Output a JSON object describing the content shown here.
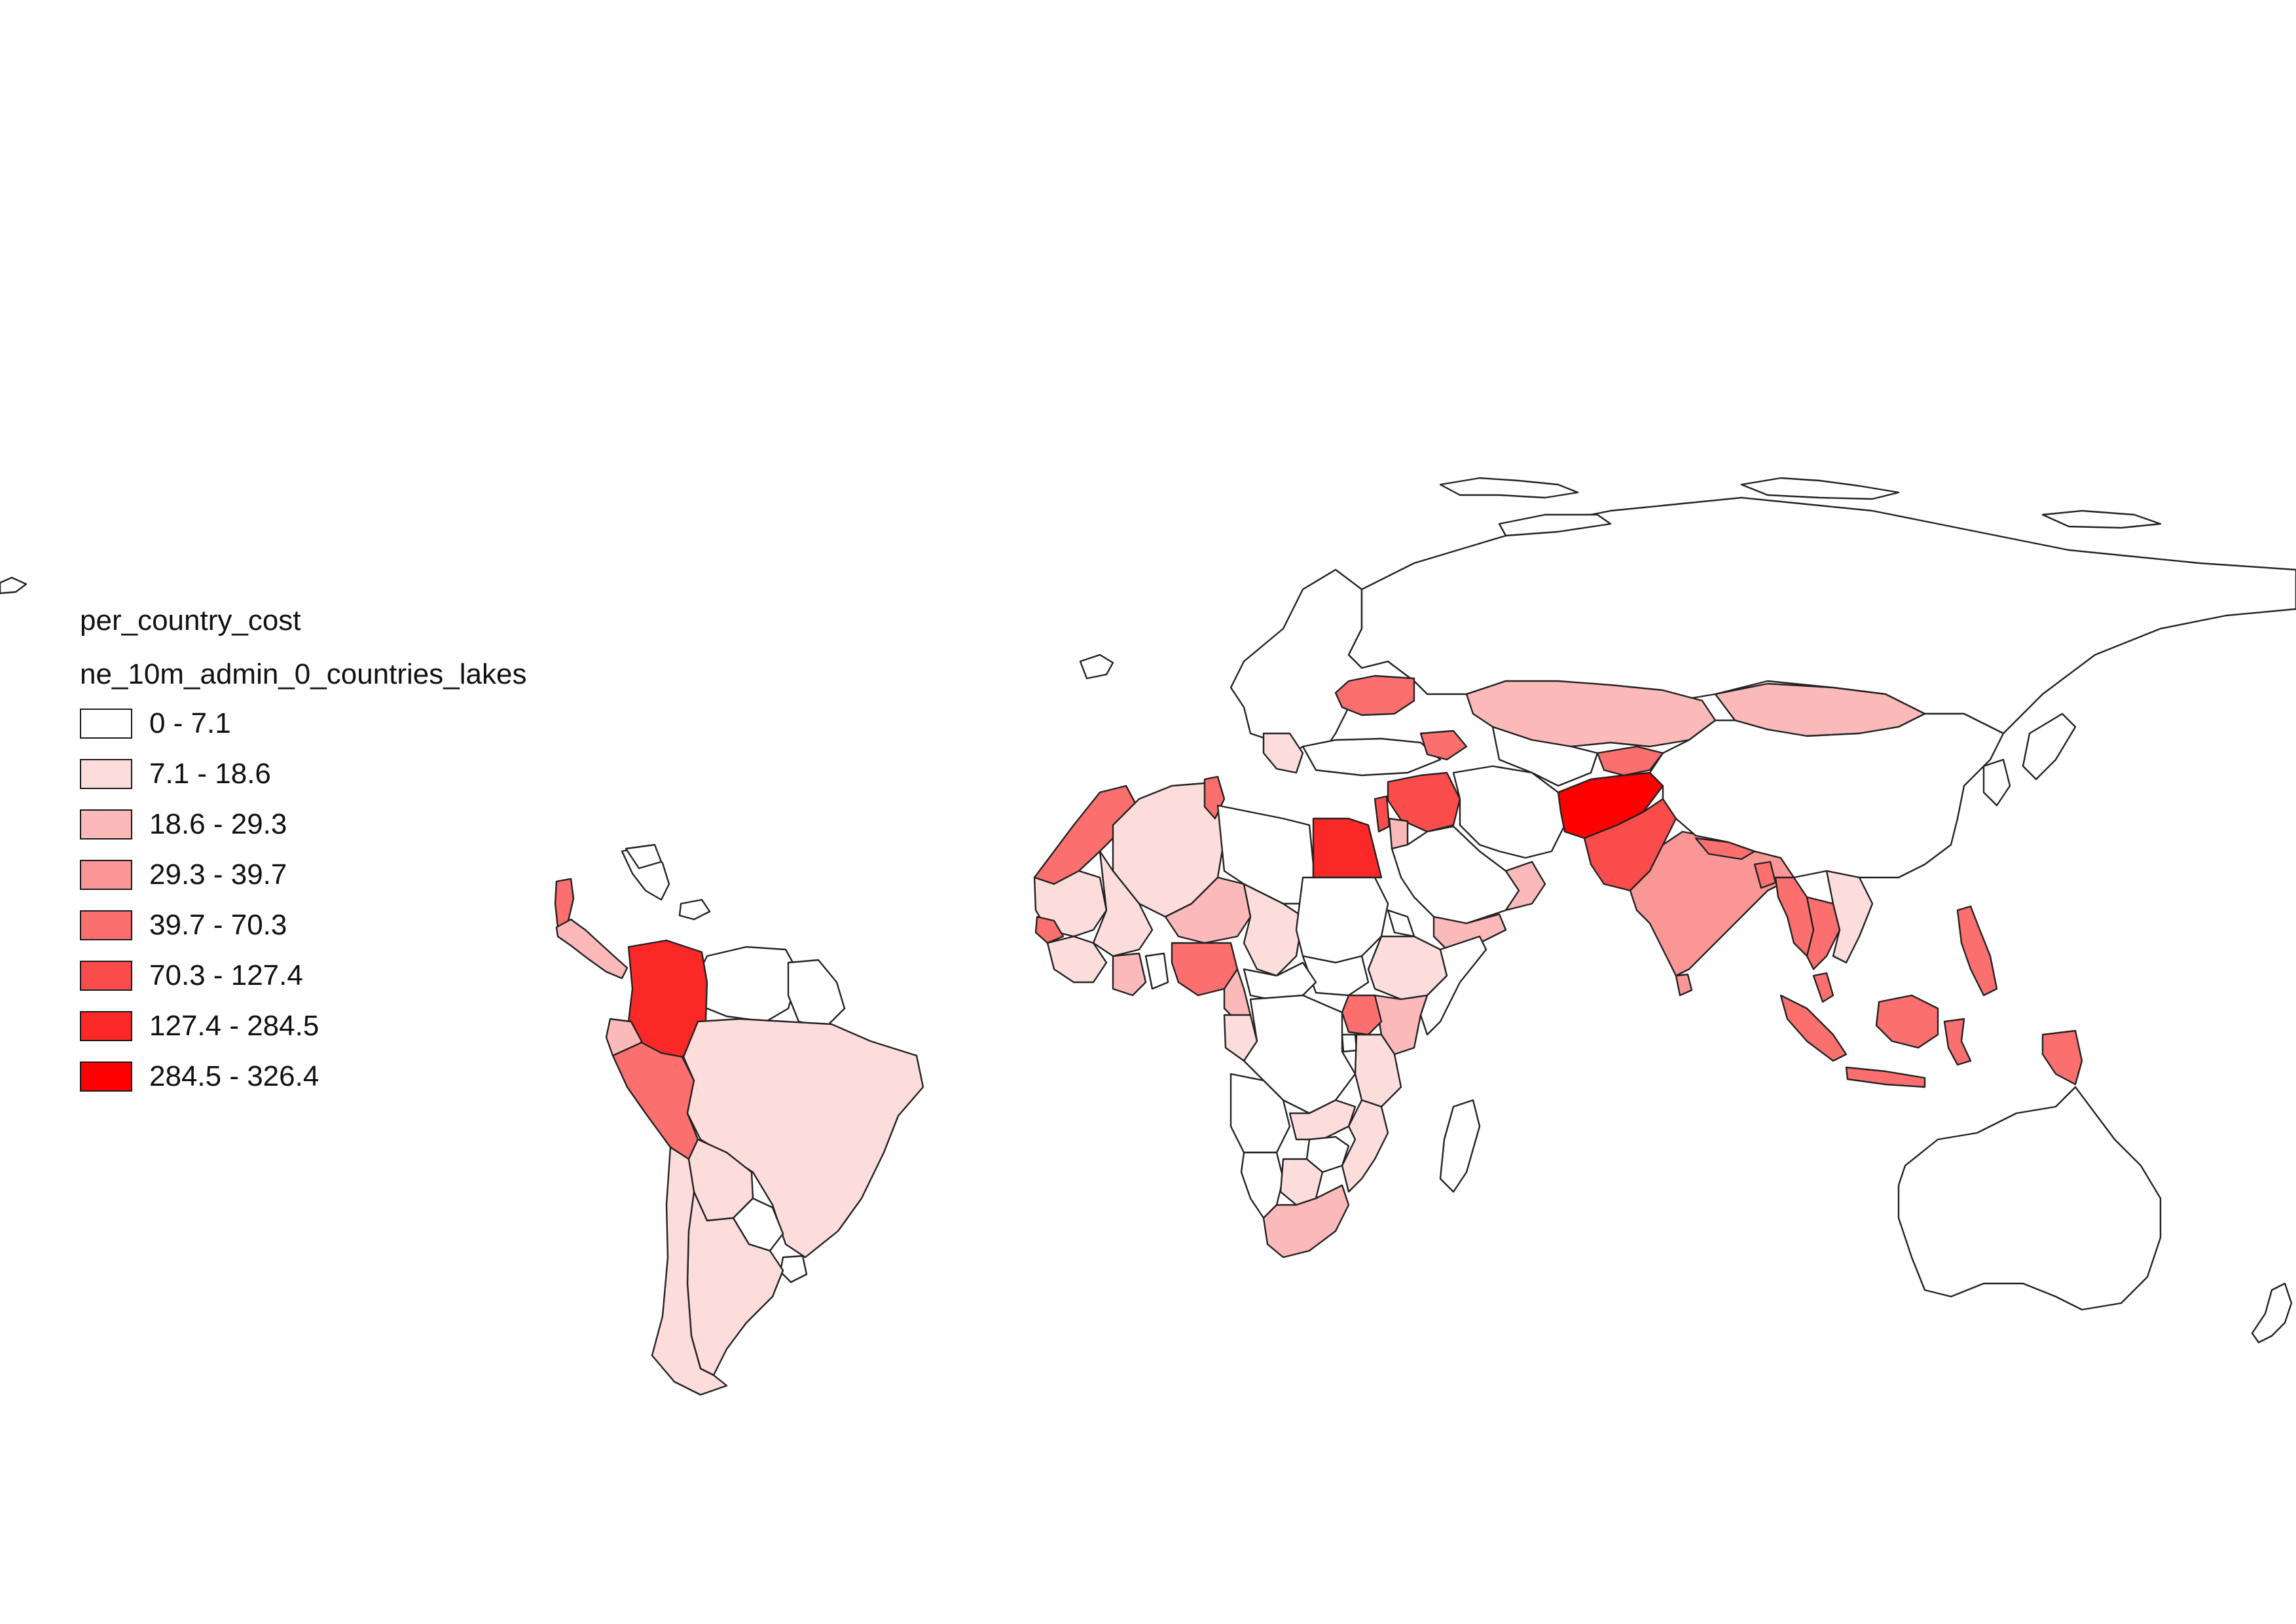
{
  "legend": {
    "title": "per_country_cost",
    "layer": "ne_10m_admin_0_countries_lakes",
    "classes": [
      {
        "label": "0 - 7.1",
        "color": "#ffffff"
      },
      {
        "label": "7.1 - 18.6",
        "color": "#fddcdc"
      },
      {
        "label": "18.6 - 29.3",
        "color": "#fcb9b9"
      },
      {
        "label": "29.3 - 39.7",
        "color": "#fb9696"
      },
      {
        "label": "39.7 - 70.3",
        "color": "#fb6f6f"
      },
      {
        "label": "70.3 - 127.4",
        "color": "#fb4c4c"
      },
      {
        "label": "127.4 - 284.5",
        "color": "#fb2828"
      },
      {
        "label": "284.5 - 326.4",
        "color": "#fe0000"
      }
    ]
  },
  "map": {
    "stroke_color": "#222222",
    "regions": [
      {
        "name": "Colombia",
        "class": 6
      },
      {
        "name": "Peru",
        "class": 4
      },
      {
        "name": "Ecuador",
        "class": 2
      },
      {
        "name": "Venezuela",
        "class": 0
      },
      {
        "name": "Guyana",
        "class": 0
      },
      {
        "name": "Brazil",
        "class": 1
      },
      {
        "name": "Bolivia",
        "class": 1
      },
      {
        "name": "Paraguay",
        "class": 0
      },
      {
        "name": "Argentina",
        "class": 1
      },
      {
        "name": "Chile",
        "class": 1
      },
      {
        "name": "Uruguay",
        "class": 0
      },
      {
        "name": "Central America",
        "class": 2
      },
      {
        "name": "Caribbean",
        "class": 0
      },
      {
        "name": "Mexico fragment",
        "class": 4
      },
      {
        "name": "Morocco",
        "class": 4
      },
      {
        "name": "Algeria",
        "class": 1
      },
      {
        "name": "Tunisia",
        "class": 4
      },
      {
        "name": "Libya",
        "class": 0
      },
      {
        "name": "Egypt",
        "class": 6
      },
      {
        "name": "Mauritania",
        "class": 1
      },
      {
        "name": "Mali",
        "class": 1
      },
      {
        "name": "Niger",
        "class": 2
      },
      {
        "name": "Chad",
        "class": 1
      },
      {
        "name": "Sudan",
        "class": 0
      },
      {
        "name": "South Sudan",
        "class": 0
      },
      {
        "name": "Senegal",
        "class": 4
      },
      {
        "name": "West Africa coast",
        "class": 1
      },
      {
        "name": "Ivory Coast",
        "class": 2
      },
      {
        "name": "Ghana",
        "class": 0
      },
      {
        "name": "Nigeria",
        "class": 4
      },
      {
        "name": "Cameroon",
        "class": 2
      },
      {
        "name": "Central African Republic",
        "class": 0
      },
      {
        "name": "Ethiopia",
        "class": 1
      },
      {
        "name": "Eritrea",
        "class": 0
      },
      {
        "name": "Somalia",
        "class": 0
      },
      {
        "name": "Kenya",
        "class": 2
      },
      {
        "name": "Uganda",
        "class": 4
      },
      {
        "name": "Rwanda Burundi",
        "class": 0
      },
      {
        "name": "Tanzania",
        "class": 1
      },
      {
        "name": "DR Congo",
        "class": 0
      },
      {
        "name": "Gabon Congo",
        "class": 1
      },
      {
        "name": "Angola",
        "class": 0
      },
      {
        "name": "Zambia",
        "class": 1
      },
      {
        "name": "Zimbabwe",
        "class": 0
      },
      {
        "name": "Mozambique",
        "class": 1
      },
      {
        "name": "Namibia",
        "class": 0
      },
      {
        "name": "Botswana",
        "class": 1
      },
      {
        "name": "South Africa",
        "class": 2
      },
      {
        "name": "Madagascar",
        "class": 0
      },
      {
        "name": "Europe",
        "class": 0
      },
      {
        "name": "Ukraine",
        "class": 4
      },
      {
        "name": "Greece Balkans",
        "class": 1
      },
      {
        "name": "Turkey",
        "class": 0
      },
      {
        "name": "Georgia Armenia",
        "class": 4
      },
      {
        "name": "Syria Iraq",
        "class": 5
      },
      {
        "name": "Lebanon Israel",
        "class": 5
      },
      {
        "name": "Jordan",
        "class": 2
      },
      {
        "name": "Saudi Arabia",
        "class": 0
      },
      {
        "name": "Yemen",
        "class": 2
      },
      {
        "name": "Oman",
        "class": 2
      },
      {
        "name": "Iran",
        "class": 0
      },
      {
        "name": "Kazakhstan",
        "class": 2
      },
      {
        "name": "Central Asia",
        "class": 0
      },
      {
        "name": "Kyrgyzstan Tajikistan",
        "class": 4
      },
      {
        "name": "Afghanistan",
        "class": 7
      },
      {
        "name": "Pakistan",
        "class": 5
      },
      {
        "name": "India",
        "class": 3
      },
      {
        "name": "Nepal",
        "class": 4
      },
      {
        "name": "Bangladesh",
        "class": 4
      },
      {
        "name": "Myanmar",
        "class": 4
      },
      {
        "name": "Thailand",
        "class": 4
      },
      {
        "name": "Laos Vietnam",
        "class": 1
      },
      {
        "name": "Malaysia",
        "class": 4
      },
      {
        "name": "Sumatra",
        "class": 4
      },
      {
        "name": "Java",
        "class": 4
      },
      {
        "name": "Borneo Indonesia",
        "class": 4
      },
      {
        "name": "Sulawesi",
        "class": 4
      },
      {
        "name": "Philippines",
        "class": 4
      },
      {
        "name": "Papua",
        "class": 4
      },
      {
        "name": "Sri Lanka",
        "class": 3
      },
      {
        "name": "Mongolia",
        "class": 2
      },
      {
        "name": "China",
        "class": 0
      },
      {
        "name": "Russia",
        "class": 0
      },
      {
        "name": "Korea Japan",
        "class": 0
      },
      {
        "name": "Australia",
        "class": 0
      },
      {
        "name": "New Zealand",
        "class": 0
      }
    ]
  }
}
